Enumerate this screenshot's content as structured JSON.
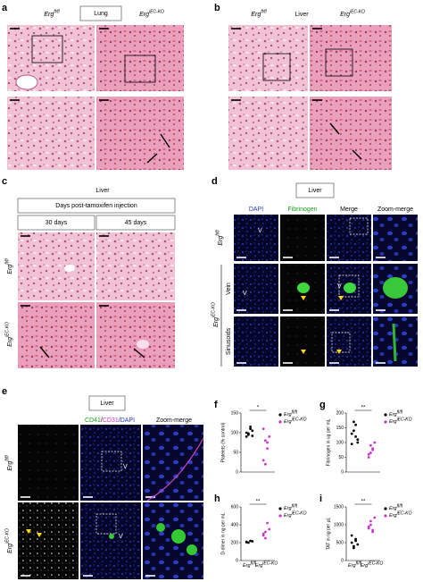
{
  "panels": {
    "a": {
      "letter": "a",
      "tissue": "Lung",
      "columns": [
        "Erg fl/fl",
        "Erg iEC-KO"
      ]
    },
    "b": {
      "letter": "b",
      "tissue": "Liver",
      "columns": [
        "Erg fl/fl",
        "Erg iEC-KO"
      ]
    },
    "c": {
      "letter": "c",
      "tissue": "Liver",
      "header": "Days post-tamoxifen injection",
      "columns": [
        "30 days",
        "45 days"
      ],
      "rows": [
        "Erg fl/fl",
        "Erg iEC-KO"
      ]
    },
    "d": {
      "letter": "d",
      "tissue": "Liver",
      "columns": [
        "DAPI",
        "Fibrinogen",
        "Merge",
        "Zoom-merge"
      ],
      "rows": [
        "Erg fl/fl",
        "Erg iEC-KO"
      ],
      "subrows": [
        "Vein",
        "Sinusoids"
      ],
      "markers": [
        "V",
        "V",
        "V"
      ]
    },
    "e": {
      "letter": "e",
      "tissue": "Liver",
      "columns": [
        "CD41",
        "CD41",
        "/",
        "CD31",
        "/DAPI",
        "Zoom-merge"
      ],
      "rows": [
        "Erg fl/fl",
        "Erg iEC-KO"
      ],
      "markers": [
        "V",
        "V"
      ]
    }
  },
  "chart_data": [
    {
      "type": "scatter",
      "panel": "f",
      "y_label": "Platelets (% control)",
      "significance": "*",
      "ylim": [
        0,
        150
      ],
      "yticks": [
        0,
        50,
        100,
        150
      ],
      "series": [
        {
          "name": "Erg fl/fl",
          "color": "#000000",
          "values": [
            100,
            95,
            110,
            105,
            90,
            98,
            115,
            92
          ]
        },
        {
          "name": "Erg iEC-KO",
          "color": "#cc33cc",
          "values": [
            110,
            80,
            60,
            90,
            30,
            20,
            75
          ]
        }
      ]
    },
    {
      "type": "scatter",
      "panel": "g",
      "y_label": "Fibrinogen in ug per mL",
      "significance": "**",
      "ylim": [
        0,
        200
      ],
      "yticks": [
        0,
        50,
        100,
        150,
        200
      ],
      "series": [
        {
          "name": "Erg fl/fl",
          "color": "#000000",
          "values": [
            130,
            170,
            160,
            110,
            95,
            140,
            120,
            100
          ]
        },
        {
          "name": "Erg iEC-KO",
          "color": "#cc33cc",
          "values": [
            60,
            90,
            75,
            100,
            50,
            65,
            80
          ]
        }
      ]
    },
    {
      "type": "scatter",
      "panel": "h",
      "y_label": "D-dimer in ng per mL",
      "significance": "**",
      "categories": [
        "Erg fl/fl",
        "Erg iEC-KO"
      ],
      "ylim": [
        0,
        600
      ],
      "yticks": [
        0,
        200,
        400,
        600
      ],
      "series": [
        {
          "name": "Erg fl/fl",
          "color": "#000000",
          "values": [
            210,
            200,
            220,
            215,
            205
          ]
        },
        {
          "name": "Erg iEC-KO",
          "color": "#cc33cc",
          "values": [
            300,
            250,
            420,
            350,
            280,
            320
          ]
        }
      ]
    },
    {
      "type": "scatter",
      "panel": "i",
      "y_label": "TAT in ng per µL",
      "significance": "**",
      "categories": [
        "Erg fl/fl",
        "Erg iEC-KO"
      ],
      "ylim": [
        0,
        1500
      ],
      "yticks": [
        0,
        500,
        1000,
        1500
      ],
      "series": [
        {
          "name": "Erg fl/fl",
          "color": "#000000",
          "values": [
            500,
            350,
            600,
            450,
            700,
            400,
            550
          ]
        },
        {
          "name": "Erg iEC-KO",
          "color": "#cc33cc",
          "values": [
            900,
            1100,
            800,
            1200,
            950,
            1000,
            850
          ]
        }
      ]
    }
  ]
}
